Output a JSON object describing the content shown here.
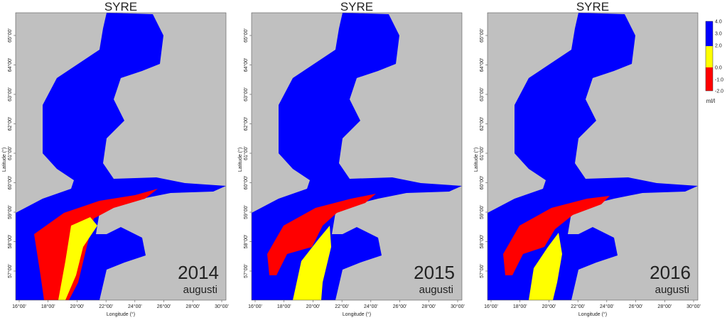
{
  "panels": [
    {
      "title": "SYRE",
      "year": "2014",
      "month": "augusti"
    },
    {
      "title": "SYRE",
      "year": "2015",
      "month": "augusti"
    },
    {
      "title": "SYRE",
      "year": "2016",
      "month": "augusti"
    }
  ],
  "axes": {
    "y_label": "Latitude (°)",
    "x_label": "Longitude (°)",
    "y_ticks": [
      "57°00'",
      "58°00'",
      "59°00'",
      "60°00'",
      "61°00'",
      "62°00'",
      "63°00'",
      "64°00'",
      "65°00'"
    ],
    "x_ticks": [
      "16°00'",
      "18°00'",
      "20°00'",
      "22°00'",
      "24°00'",
      "26°00'",
      "28°00'",
      "30°00'"
    ]
  },
  "colorbar": {
    "ticks": [
      "4.0",
      "3.0",
      "2.0",
      "0.0",
      "-1.0",
      "-2.0"
    ],
    "unit": "ml/l"
  }
}
